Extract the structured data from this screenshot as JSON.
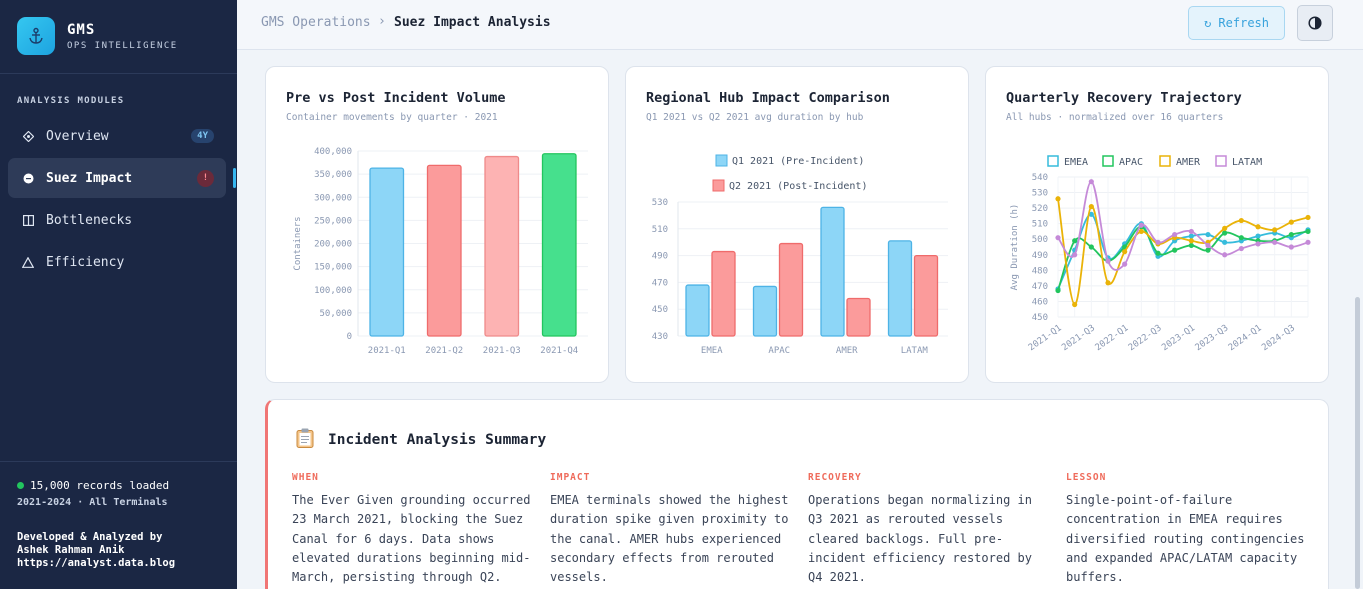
{
  "sidebar": {
    "brand_title": "GMS",
    "brand_subtitle": "OPS INTELLIGENCE",
    "section_label": "ANALYSIS MODULES",
    "items": [
      {
        "label": "Overview",
        "icon": "diamond-icon",
        "badge": "4Y"
      },
      {
        "label": "Suez Impact",
        "icon": "circle-icon",
        "badge": "!"
      },
      {
        "label": "Bottlenecks",
        "icon": "columns-icon"
      },
      {
        "label": "Efficiency",
        "icon": "triangle-icon"
      }
    ],
    "status": "15,000 records loaded",
    "scope": "2021-2024 · All Terminals",
    "credit_line1": "Developed & Analyzed by",
    "credit_line2": "Ashek Rahman Anik",
    "credit_line3": "https://analyst.data.blog"
  },
  "header": {
    "breadcrumb_root": "GMS Operations",
    "breadcrumb_sep": "›",
    "breadcrumb_current": "Suez Impact Analysis",
    "refresh_label": "↻ Refresh"
  },
  "cards": {
    "volume": {
      "title": "Pre vs Post Incident Volume",
      "subtitle": "Container movements by quarter · 2021"
    },
    "regional": {
      "title": "Regional Hub Impact Comparison",
      "subtitle": "Q1 2021 vs Q2 2021 avg duration by hub"
    },
    "recovery": {
      "title": "Quarterly Recovery Trajectory",
      "subtitle": "All hubs · normalized over 16 quarters"
    }
  },
  "summary": {
    "title": "Incident Analysis Summary",
    "columns": [
      {
        "label": "WHEN",
        "text": "The Ever Given grounding occurred 23 March 2021, blocking the Suez Canal for 6 days. Data shows elevated durations beginning mid-March, persisting through Q2."
      },
      {
        "label": "IMPACT",
        "text": "EMEA terminals showed the highest duration spike given proximity to the canal. AMER hubs experienced secondary effects from rerouted vessels."
      },
      {
        "label": "RECOVERY",
        "text": "Operations began normalizing in Q3 2021 as rerouted vessels cleared backlogs. Full pre-incident efficiency restored by Q4 2021."
      },
      {
        "label": "LESSON",
        "text": "Single-point-of-failure concentration in EMEA requires diversified routing contingencies and expanded APAC/LATAM capacity buffers."
      }
    ]
  },
  "colors": {
    "accent": "#37b6ef",
    "alert": "#ef6b5b",
    "sidebar": "#1b2744"
  },
  "chart_data": [
    {
      "type": "bar",
      "categories": [
        "2021-Q1",
        "2021-Q2",
        "2021-Q3",
        "2021-Q4"
      ],
      "values": [
        363000,
        369000,
        388000,
        394000
      ],
      "bar_colors": [
        "#8dd6f7",
        "#fb9b9b",
        "#fdb3b3",
        "#46e08d"
      ],
      "bar_strokes": [
        "#4db3e6",
        "#ef6b6b",
        "#ef8a8a",
        "#22c55e"
      ],
      "ylabel": "Containers",
      "ylim": [
        0,
        400000
      ],
      "yticks": [
        "0",
        "50,000",
        "100,000",
        "150,000",
        "200,000",
        "250,000",
        "300,000",
        "350,000",
        "400,000"
      ],
      "grid": true
    },
    {
      "type": "bar",
      "categories": [
        "EMEA",
        "APAC",
        "AMER",
        "LATAM"
      ],
      "series": [
        {
          "name": "Q1 2021 (Pre-Incident)",
          "values": [
            468,
            467,
            526,
            501
          ],
          "color": "#8dd6f7"
        },
        {
          "name": "Q2 2021 (Post-Incident)",
          "values": [
            493,
            499,
            458,
            490
          ],
          "color": "#fb9b9b"
        }
      ],
      "ylim": [
        430,
        530
      ],
      "yticks": [
        "430",
        "450",
        "470",
        "490",
        "510",
        "530"
      ],
      "legend": "top",
      "grid": true
    },
    {
      "type": "line",
      "x": [
        "2021-Q1",
        "2021-Q2",
        "2021-Q3",
        "2021-Q4",
        "2022-Q1",
        "2022-Q2",
        "2022-Q3",
        "2022-Q4",
        "2023-Q1",
        "2023-Q2",
        "2023-Q3",
        "2023-Q4",
        "2024-Q1",
        "2024-Q2",
        "2024-Q3",
        "2024-Q4"
      ],
      "xtick_labels": [
        "2021-Q1",
        "2021-Q3",
        "2022-Q1",
        "2022-Q3",
        "2023-Q1",
        "2023-Q3",
        "2024-Q1",
        "2024-Q3"
      ],
      "series": [
        {
          "name": "EMEA",
          "color": "#36bcdc",
          "values": [
            468,
            493,
            516,
            488,
            497,
            510,
            489,
            499,
            502,
            503,
            498,
            499,
            502,
            504,
            501,
            506
          ]
        },
        {
          "name": "APAC",
          "color": "#22c55e",
          "values": [
            467,
            499,
            495,
            486,
            495,
            508,
            491,
            493,
            496,
            493,
            504,
            501,
            499,
            499,
            503,
            505
          ]
        },
        {
          "name": "AMER",
          "color": "#eab308",
          "values": [
            526,
            458,
            521,
            472,
            492,
            505,
            497,
            501,
            499,
            498,
            507,
            512,
            508,
            506,
            511,
            514
          ]
        },
        {
          "name": "LATAM",
          "color": "#c58ad8",
          "values": [
            501,
            490,
            537,
            486,
            484,
            509,
            498,
            503,
            505,
            496,
            490,
            494,
            497,
            498,
            495,
            498
          ]
        }
      ],
      "ylabel": "Avg Duration (h)",
      "ylim": [
        450,
        540
      ],
      "yticks": [
        "450",
        "460",
        "470",
        "480",
        "490",
        "500",
        "510",
        "520",
        "530",
        "540"
      ],
      "legend": "top",
      "grid": true
    }
  ]
}
